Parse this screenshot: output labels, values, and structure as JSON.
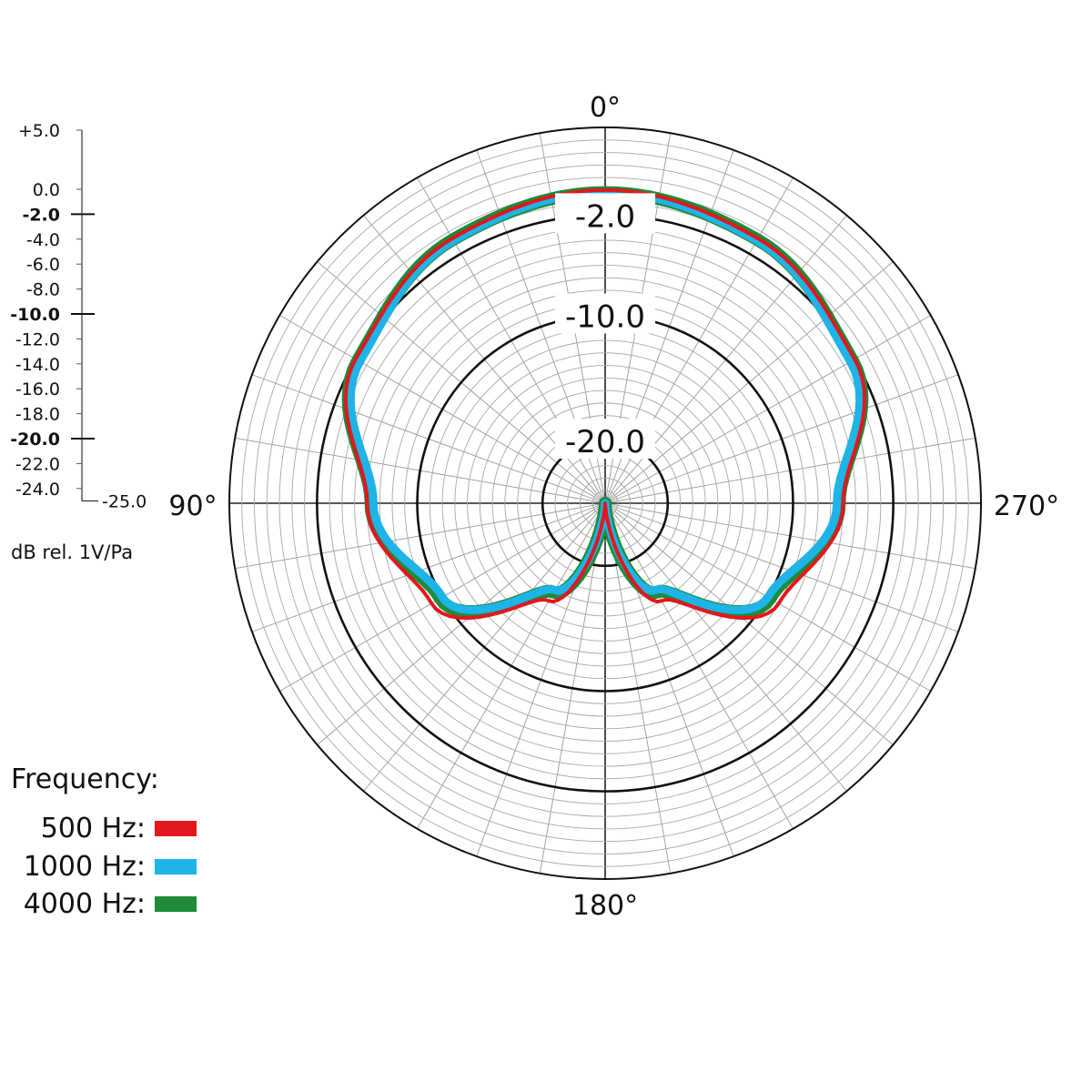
{
  "chart_data": {
    "type": "polar",
    "angle_labels": [
      "0°",
      "90°",
      "180°",
      "270°"
    ],
    "radial_axis": {
      "min": -25.0,
      "max": 5.0,
      "ticks": [
        "+5.0",
        "0.0",
        "-2.0",
        "-4.0",
        "-6.0",
        "-8.0",
        "-10.0",
        "-12.0",
        "-14.0",
        "-16.0",
        "-18.0",
        "-20.0",
        "-22.0",
        "-24.0"
      ],
      "min_label": "-25.0",
      "bold_ticks": [
        "-2.0",
        "-10.0",
        "-20.0"
      ],
      "unit": "dB rel. 1V/Pa"
    },
    "ring_labels": [
      "-2.0",
      "-10.0",
      "-20.0"
    ],
    "grid": true,
    "legend": {
      "title": "Frequency:",
      "position": "bottom-left"
    },
    "series": [
      {
        "name": "500 Hz:",
        "color": "#e3171c",
        "angles": [
          0,
          30,
          60,
          90,
          120,
          150,
          180,
          210,
          240,
          270,
          300,
          330,
          360
        ],
        "values": [
          0.0,
          -0.6,
          -2.0,
          -6.0,
          -9.0,
          -16.0,
          -25.0,
          -16.0,
          -9.0,
          -6.0,
          -2.0,
          -0.6,
          0.0
        ]
      },
      {
        "name": "1000 Hz:",
        "color": "#1eb4e8",
        "angles": [
          0,
          30,
          60,
          90,
          120,
          150,
          180,
          210,
          240,
          270,
          300,
          330,
          360
        ],
        "values": [
          -0.2,
          -0.8,
          -2.4,
          -6.5,
          -10.0,
          -17.0,
          -25.0,
          -17.0,
          -10.0,
          -6.5,
          -2.4,
          -0.8,
          -0.2
        ]
      },
      {
        "name": "4000 Hz:",
        "color": "#1e8a3a",
        "angles": [
          0,
          30,
          60,
          90,
          120,
          150,
          180,
          210,
          240,
          270,
          300,
          330,
          360
        ],
        "values": [
          -0.2,
          -0.7,
          -2.2,
          -6.3,
          -9.8,
          -16.8,
          -25.0,
          -16.8,
          -9.8,
          -6.3,
          -2.2,
          -0.7,
          -0.2
        ]
      }
    ]
  }
}
